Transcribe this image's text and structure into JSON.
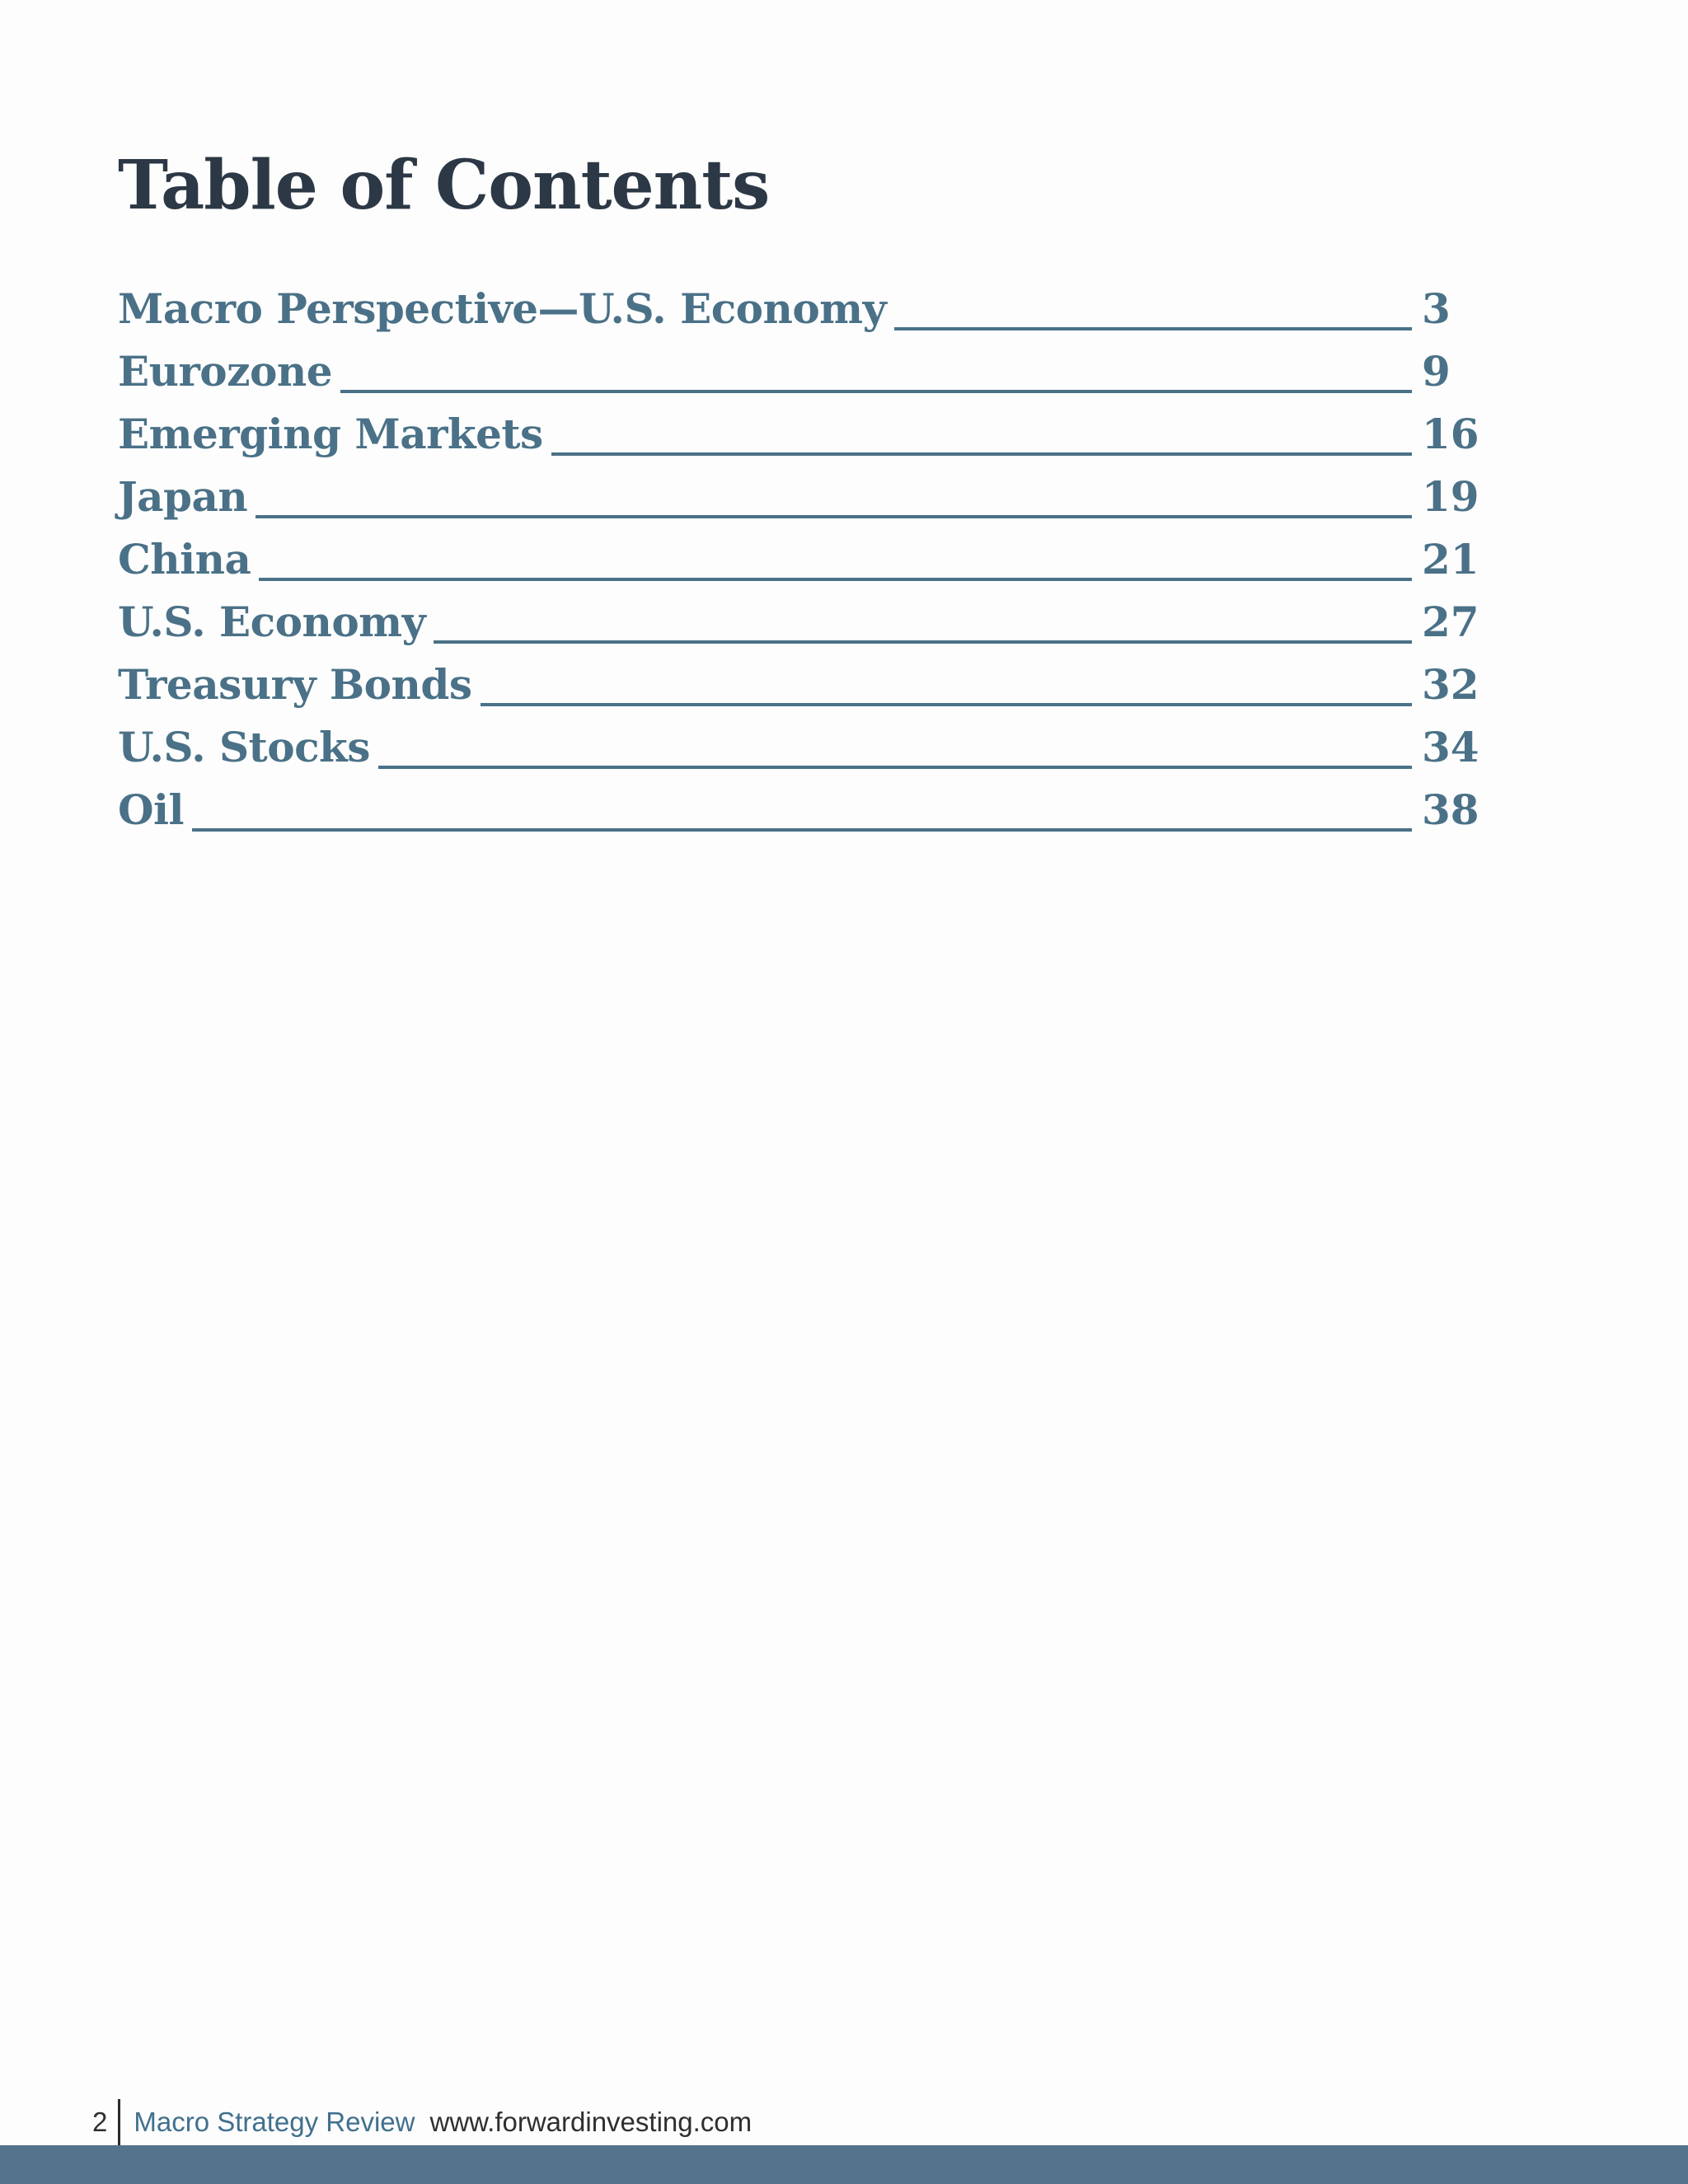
{
  "document": {
    "title": "Table of Contents",
    "toc_entries": [
      {
        "label": "Macro Perspective—U.S. Economy",
        "page": "3"
      },
      {
        "label": "Eurozone",
        "page": "9"
      },
      {
        "label": "Emerging Markets",
        "page": "16"
      },
      {
        "label": "Japan",
        "page": "19"
      },
      {
        "label": "China",
        "page": "21"
      },
      {
        "label": "U.S. Economy",
        "page": "27"
      },
      {
        "label": "Treasury Bonds",
        "page": "32"
      },
      {
        "label": "U.S. Stocks",
        "page": "34"
      },
      {
        "label": "Oil",
        "page": "38"
      }
    ],
    "footer": {
      "page_number": "2",
      "publication": "Macro Strategy Review",
      "website": "www.forwardinvesting.com"
    },
    "colors": {
      "title_text": "#2C3845",
      "toc_text": "#4A7187",
      "leader_line": "#4A7187",
      "footer_brand": "#40708E",
      "footer_text": "#2F2F2F",
      "footer_divider": "#2B2B2B",
      "bottom_bar": "#53748C"
    }
  }
}
